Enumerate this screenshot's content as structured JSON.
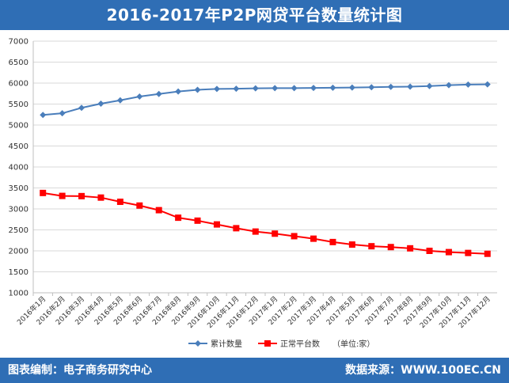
{
  "header": {
    "title": "2016-2017年P2P网贷平台数量统计图"
  },
  "footer": {
    "left_text": "图表编制：电子商务研究中心",
    "right_text": "数据来源：WWW.100EC.CN"
  },
  "chart_data": {
    "type": "line",
    "title": "2016-2017年P2P网贷平台数量统计图",
    "categories": [
      "2016年1月",
      "2016年2月",
      "2016年3月",
      "2016年4月",
      "2016年5月",
      "2016年6月",
      "2016年7月",
      "2016年8月",
      "2016年9月",
      "2016年10月",
      "2016年11月",
      "2016年12月",
      "2017年1月",
      "2017年2月",
      "2017年3月",
      "2017年4月",
      "2017年5月",
      "2017年6月",
      "2017年7月",
      "2017年8月",
      "2017年9月",
      "2017年10月",
      "2017年11月",
      "2017年12月"
    ],
    "series": [
      {
        "name": "累计数量",
        "color": "#4a7ebb",
        "marker": "diamond",
        "values": [
          5240,
          5280,
          5410,
          5510,
          5590,
          5680,
          5740,
          5800,
          5840,
          5860,
          5865,
          5875,
          5880,
          5880,
          5885,
          5890,
          5895,
          5900,
          5910,
          5915,
          5930,
          5950,
          5965,
          5970
        ]
      },
      {
        "name": "正常平台数",
        "color": "#ff0000",
        "marker": "square",
        "values": [
          3380,
          3310,
          3305,
          3270,
          3170,
          3080,
          2970,
          2790,
          2720,
          2630,
          2540,
          2460,
          2410,
          2350,
          2290,
          2210,
          2150,
          2110,
          2090,
          2060,
          2000,
          1970,
          1950,
          1930
        ]
      }
    ],
    "ylim": [
      1000,
      7000
    ],
    "yticks": [
      1000,
      1500,
      2000,
      2500,
      3000,
      3500,
      4000,
      4500,
      5000,
      5500,
      6000,
      6500,
      7000
    ],
    "grid": true,
    "legend_position": "bottom",
    "unit_note": "（单位:家）"
  }
}
